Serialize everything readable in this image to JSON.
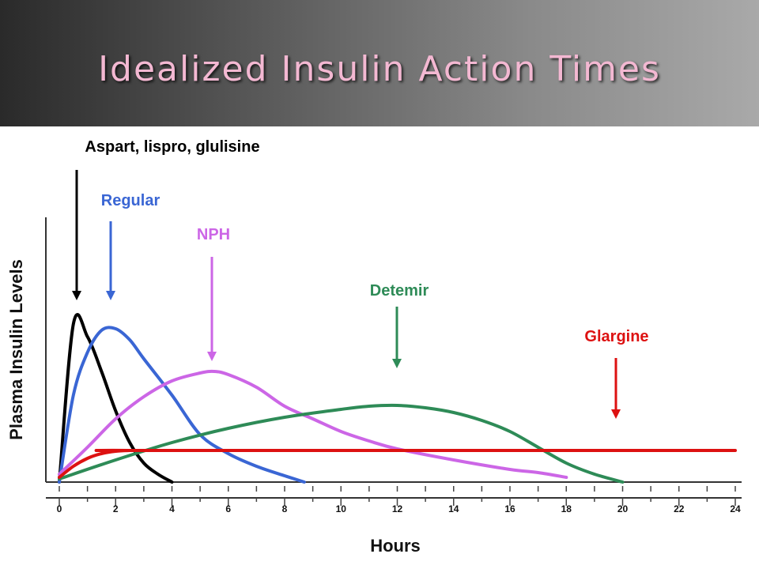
{
  "slide": {
    "title": "Idealized Insulin Action Times"
  },
  "chart_data": {
    "type": "line",
    "xlabel": "Hours",
    "ylabel": "Plasma Insulin Levels",
    "xlim": [
      0,
      24
    ],
    "ylim": [
      0,
      100
    ],
    "xticks": [
      "0",
      "2",
      "4",
      "6",
      "8",
      "10",
      "12",
      "14",
      "16",
      "18",
      "20",
      "22",
      "24"
    ],
    "grid": false,
    "series": [
      {
        "name": "Aspart, lispro, glulisine",
        "color": "#000000",
        "points": [
          [
            0,
            0
          ],
          [
            0.5,
            100
          ],
          [
            1,
            92
          ],
          [
            1.5,
            70
          ],
          [
            2,
            45
          ],
          [
            2.5,
            25
          ],
          [
            3,
            12
          ],
          [
            3.5,
            5
          ],
          [
            4,
            0
          ]
        ],
        "annotation_x": 0.7,
        "label_y": 98
      },
      {
        "name": "Regular",
        "color": "#3a66d4",
        "points": [
          [
            0,
            0
          ],
          [
            0.5,
            55
          ],
          [
            1,
            82
          ],
          [
            1.5,
            96
          ],
          [
            2,
            97
          ],
          [
            2.5,
            90
          ],
          [
            3,
            78
          ],
          [
            4,
            55
          ],
          [
            5,
            30
          ],
          [
            6,
            18
          ],
          [
            7,
            10
          ],
          [
            8,
            4
          ],
          [
            8.7,
            0
          ]
        ],
        "annotation_x": 1.8,
        "label_y": 83
      },
      {
        "name": "NPH",
        "color": "#cc66e6",
        "points": [
          [
            0,
            5
          ],
          [
            1,
            22
          ],
          [
            2,
            40
          ],
          [
            3,
            54
          ],
          [
            4,
            64
          ],
          [
            5,
            69
          ],
          [
            5.5,
            70
          ],
          [
            6,
            68
          ],
          [
            7,
            60
          ],
          [
            8,
            48
          ],
          [
            9,
            40
          ],
          [
            10,
            32
          ],
          [
            11,
            26
          ],
          [
            12,
            21
          ],
          [
            14,
            14
          ],
          [
            16,
            8
          ],
          [
            17,
            6
          ],
          [
            18,
            3
          ]
        ],
        "annotation_x": 5.5,
        "label_y": 74
      },
      {
        "name": "Detemir",
        "color": "#2e8b57",
        "points": [
          [
            0,
            2
          ],
          [
            2,
            14
          ],
          [
            4,
            25
          ],
          [
            6,
            34
          ],
          [
            8,
            41
          ],
          [
            10,
            46
          ],
          [
            11,
            48
          ],
          [
            12,
            48.5
          ],
          [
            13,
            47
          ],
          [
            14,
            44
          ],
          [
            15,
            39
          ],
          [
            16,
            32
          ],
          [
            17,
            22
          ],
          [
            18,
            12
          ],
          [
            19,
            5
          ],
          [
            20,
            0
          ]
        ],
        "annotation_x": 12,
        "label_y": 57
      },
      {
        "name": "Glargine",
        "color": "#dd1111",
        "points": [
          [
            0,
            3
          ],
          [
            0.5,
            10
          ],
          [
            1,
            15
          ],
          [
            1.5,
            18
          ],
          [
            2,
            19.5
          ],
          [
            2.5,
            20
          ],
          [
            3,
            20
          ],
          [
            24,
            20
          ]
        ],
        "annotation_x": 20,
        "label_y": 43
      }
    ]
  }
}
